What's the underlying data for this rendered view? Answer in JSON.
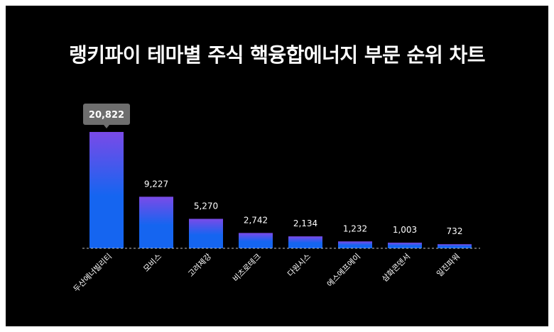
{
  "title": "랭키파이 테마별 주식 핵융합에너지 부문 순위 차트",
  "colors": {
    "background": "#000000",
    "bar_top": "#7a4ae8",
    "bar_bottom": "#1565f0",
    "text": "#ffffff",
    "tooltip_bg": "#6e6e6e",
    "baseline": "#bfbfbf"
  },
  "chart_data": {
    "type": "bar",
    "categories": [
      "두산에너빌리티",
      "모비스",
      "고려제강",
      "비츠로테크",
      "다원시스",
      "에스에프에이",
      "삼화콘덴서",
      "일진파워"
    ],
    "values": [
      20822,
      9227,
      5270,
      2742,
      2134,
      1232,
      1003,
      732
    ],
    "value_labels": [
      "20,822",
      "9,227",
      "5,270",
      "2,742",
      "2,134",
      "1,232",
      "1,003",
      "732"
    ],
    "highlight_index": 0,
    "xlabel": "",
    "ylabel": "",
    "grid": false,
    "legend": "none"
  }
}
